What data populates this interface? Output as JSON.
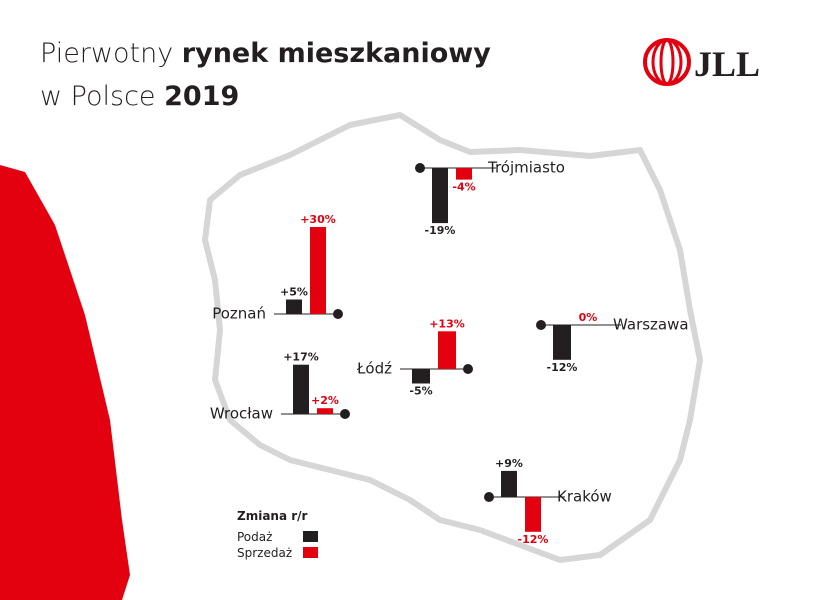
{
  "chart_data": {
    "type": "bar",
    "title": {
      "line1_light": "Pierwotny",
      "line1_bold": "rynek mieszkaniowy",
      "line2_light": "w Polsce",
      "line2_bold": "2019"
    },
    "logo": "JLL",
    "legend_title": "Zmiana r/r",
    "categories": [
      "Trójmiasto",
      "Poznań",
      "Warszawa",
      "Łódź",
      "Wrocław",
      "Kraków"
    ],
    "series": [
      {
        "name": "Podaż",
        "color": "#231f20",
        "values": [
          -19,
          5,
          -12,
          -5,
          17,
          9
        ],
        "value_labels": [
          "-19%",
          "+5%",
          "-12%",
          "-5%",
          "+17%",
          "+9%"
        ]
      },
      {
        "name": "Sprzedaż",
        "color": "#e3000f",
        "values": [
          -4,
          30,
          0,
          13,
          2,
          -12
        ],
        "value_labels": [
          "-4%",
          "+30%",
          "0%",
          "+13%",
          "+2%",
          "-12%"
        ]
      }
    ]
  }
}
